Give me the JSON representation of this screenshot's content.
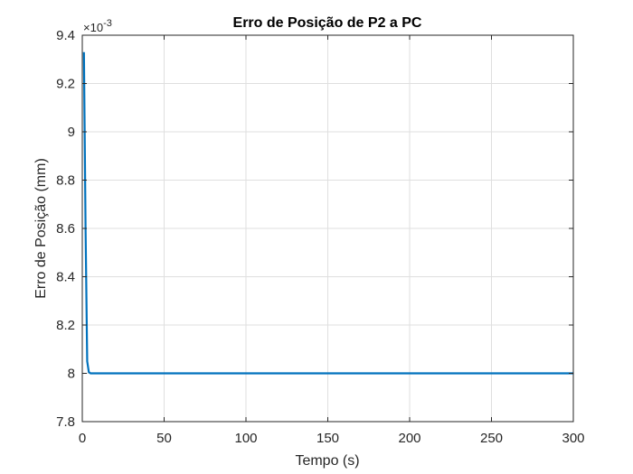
{
  "chart_data": {
    "type": "line",
    "title": "Erro de Posição de P2 a PC",
    "xlabel": "Tempo (s)",
    "ylabel": "Erro de Posição (mm)",
    "y_exponent_label": "×10",
    "y_exponent_power": "-3",
    "xlim": [
      0,
      300
    ],
    "ylim": [
      7.8,
      9.4
    ],
    "x_ticks": [
      0,
      50,
      100,
      150,
      200,
      250,
      300
    ],
    "x_tick_labels": [
      "0",
      "50",
      "100",
      "150",
      "200",
      "250",
      "300"
    ],
    "y_ticks": [
      7.8,
      8.0,
      8.2,
      8.4,
      8.6,
      8.8,
      9.0,
      9.2,
      9.4
    ],
    "y_tick_labels": [
      "7.8",
      "8",
      "8.2",
      "8.4",
      "8.6",
      "8.8",
      "9",
      "9.2",
      "9.4"
    ],
    "grid": true,
    "series": [
      {
        "color": "#0072BD",
        "x": [
          1,
          2,
          3,
          4,
          5,
          10,
          50,
          100,
          150,
          200,
          250,
          300
        ],
        "y": [
          9.33,
          8.6,
          8.05,
          8.005,
          8.0,
          8.0,
          8.0,
          8.0,
          8.0,
          8.0,
          8.0,
          8.0
        ]
      }
    ]
  }
}
